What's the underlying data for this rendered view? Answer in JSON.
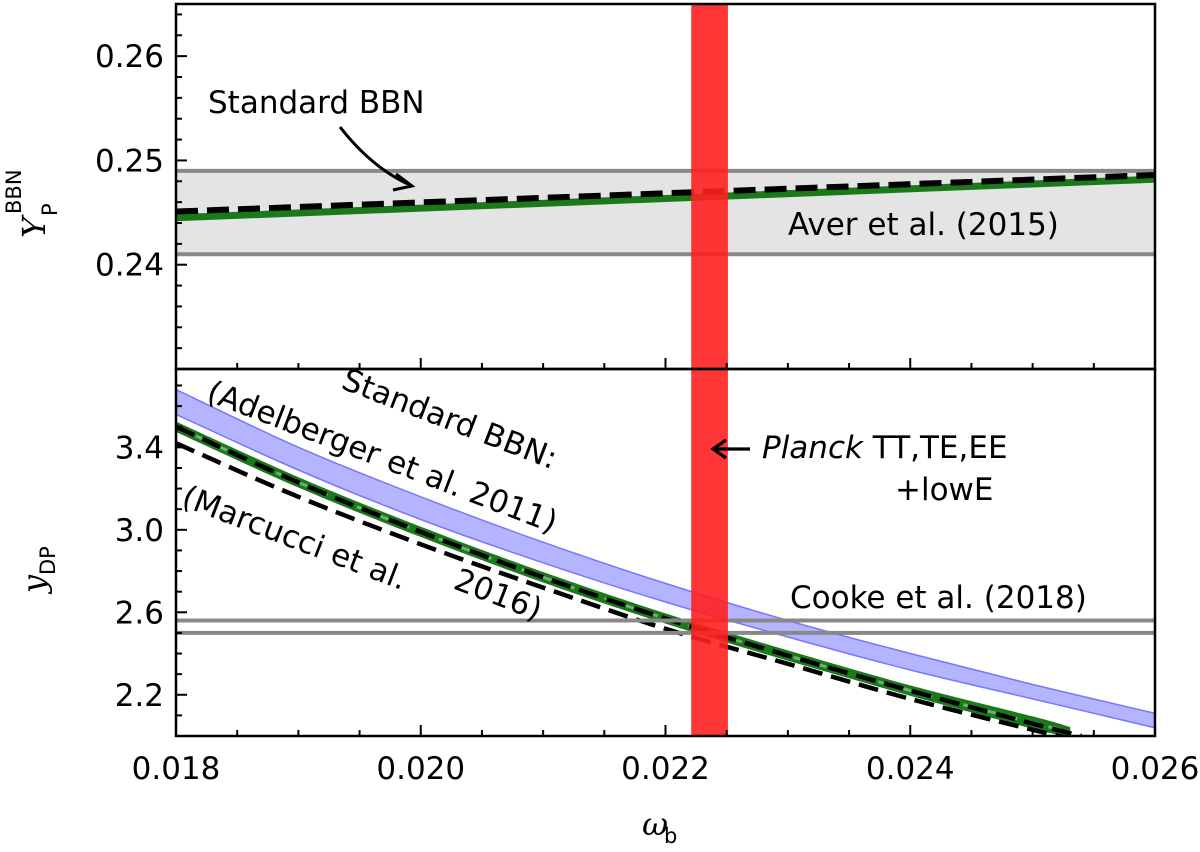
{
  "chart_data": [
    {
      "type": "line",
      "panel": "top",
      "xlim": [
        0.018,
        0.026
      ],
      "ylim": [
        0.23,
        0.265
      ],
      "yticks": [
        "0.24",
        "0.25",
        "0.26"
      ],
      "ylabel": {
        "main": "Y",
        "sub": "P",
        "sup": "BBN"
      },
      "series": [
        {
          "name": "Standard BBN",
          "style": "black-dashed",
          "x": [
            0.018,
            0.026
          ],
          "y": [
            0.2451,
            0.2486
          ]
        },
        {
          "style": "green",
          "x": [
            0.018,
            0.026
          ],
          "y": [
            0.2445,
            0.2482
          ]
        }
      ],
      "band": {
        "label": "Aver et al. (2015)",
        "ymin": 0.241,
        "ymax": 0.249
      },
      "annotations": {
        "standard_bbn": "Standard BBN"
      }
    },
    {
      "type": "line",
      "panel": "bottom",
      "xlim": [
        0.018,
        0.026
      ],
      "ylim": [
        2.0,
        3.78
      ],
      "xticks": [
        "0.018",
        "0.020",
        "0.022",
        "0.024",
        "0.026"
      ],
      "yticks": [
        "2.2",
        "2.6",
        "3.0",
        "3.4"
      ],
      "xlabel": {
        "main": "ω",
        "sub": "b"
      },
      "ylabel": {
        "main": "y",
        "sub": "DP"
      },
      "blue_band": {
        "x": [
          0.018,
          0.019,
          0.02,
          0.021,
          0.022,
          0.023,
          0.024,
          0.025,
          0.026
        ],
        "upper": [
          3.68,
          3.4,
          3.16,
          2.94,
          2.74,
          2.56,
          2.4,
          2.25,
          2.11
        ],
        "lower": [
          3.56,
          3.29,
          3.05,
          2.84,
          2.65,
          2.48,
          2.32,
          2.18,
          2.04
        ]
      },
      "green_band": {
        "x": [
          0.018,
          0.019,
          0.02,
          0.021,
          0.022,
          0.023,
          0.024,
          0.025,
          0.0253
        ],
        "upper": [
          3.52,
          3.25,
          3.01,
          2.79,
          2.59,
          2.41,
          2.24,
          2.09,
          2.04
        ],
        "lower": [
          3.48,
          3.21,
          2.97,
          2.75,
          2.55,
          2.37,
          2.2,
          2.04,
          2.0
        ]
      },
      "dashed_lines": [
        {
          "x": [
            0.018,
            0.019,
            0.02,
            0.021,
            0.022,
            0.023,
            0.024,
            0.025,
            0.0254
          ],
          "y": [
            3.5,
            3.23,
            2.99,
            2.77,
            2.57,
            2.39,
            2.22,
            2.06,
            2.0
          ]
        },
        {
          "x": [
            0.018,
            0.019,
            0.02,
            0.021,
            0.022,
            0.023,
            0.024,
            0.025,
            0.0253
          ],
          "y": [
            3.42,
            3.16,
            2.93,
            2.72,
            2.52,
            2.35,
            2.18,
            2.03,
            1.99
          ]
        }
      ],
      "hlines": {
        "label": "Cooke et al. (2018)",
        "y": [
          2.5,
          2.56
        ]
      },
      "annotations": {
        "adelberger_line1": "Standard BBN:",
        "adelberger_line2": "(Adelberger et al. 2011)",
        "marcucci_line1": "(Marcucci et al.",
        "marcucci_line2": "2016)"
      }
    }
  ],
  "planck": {
    "xmin": 0.02221,
    "xmax": 0.02251,
    "label_italic": "Planck",
    "label_rest": " TT,TE,EE",
    "label_line2": "+lowE"
  },
  "colors": {
    "planck": "#ff2020",
    "blue_band": "#7777ff",
    "green": "#1a7a1a",
    "gray_band": "#e4e4e4",
    "gray_line": "#888888"
  }
}
